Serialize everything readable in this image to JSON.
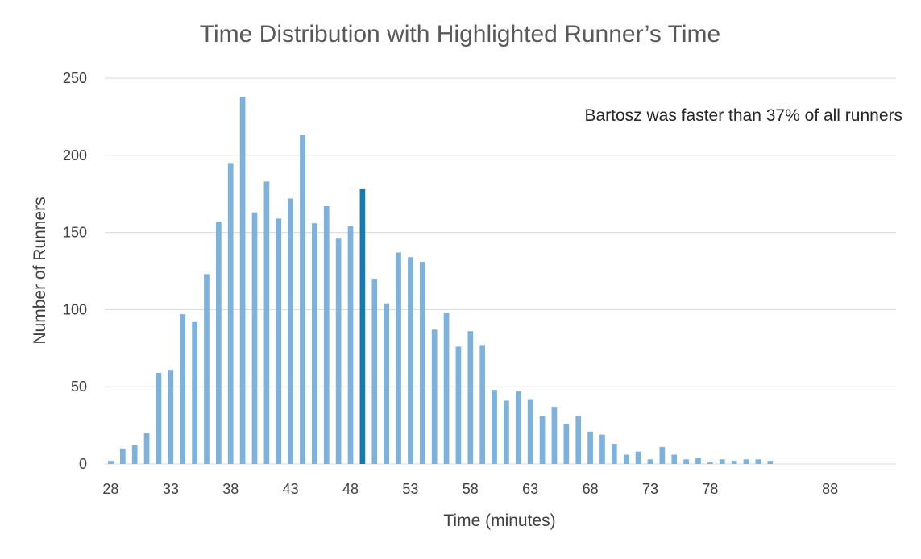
{
  "chart_data": {
    "type": "bar",
    "title": "Time Distribution with Highlighted Runner’s Time",
    "xlabel": "Time (minutes)",
    "ylabel": "Number of Runners",
    "ylim": [
      0,
      250
    ],
    "yticks": [
      "0",
      "50",
      "100",
      "150",
      "200",
      "250"
    ],
    "grid": true,
    "annotation": "Bartosz was faster than 37% of all runners",
    "highlight_category": 49,
    "colors": {
      "bar": "#7cb2dd",
      "highlight": "#0f7cb5",
      "grid": "#d9d9d9"
    },
    "xticks": [
      "28",
      "33",
      "38",
      "43",
      "48",
      "53",
      "58",
      "63",
      "68",
      "73",
      "78",
      "88"
    ],
    "categories": [
      28,
      29,
      30,
      31,
      32,
      33,
      34,
      35,
      36,
      37,
      38,
      39,
      40,
      41,
      42,
      43,
      44,
      45,
      46,
      47,
      48,
      49,
      50,
      51,
      52,
      53,
      54,
      55,
      56,
      57,
      58,
      59,
      60,
      61,
      62,
      63,
      64,
      65,
      66,
      67,
      68,
      69,
      70,
      71,
      72,
      73,
      74,
      75,
      76,
      77,
      78,
      79,
      80,
      81,
      82,
      83,
      84,
      85,
      86,
      87,
      88,
      89,
      90,
      91,
      92,
      93
    ],
    "values": [
      2,
      10,
      12,
      20,
      59,
      61,
      97,
      92,
      123,
      157,
      195,
      238,
      163,
      183,
      159,
      172,
      213,
      156,
      167,
      146,
      154,
      178,
      120,
      104,
      137,
      134,
      131,
      87,
      98,
      76,
      86,
      77,
      48,
      41,
      47,
      42,
      31,
      37,
      26,
      31,
      21,
      19,
      13,
      6,
      8,
      3,
      11,
      6,
      3,
      4,
      1,
      3,
      2,
      3,
      3,
      2,
      0,
      0,
      0,
      0,
      0,
      0,
      0,
      0,
      0,
      0
    ]
  }
}
